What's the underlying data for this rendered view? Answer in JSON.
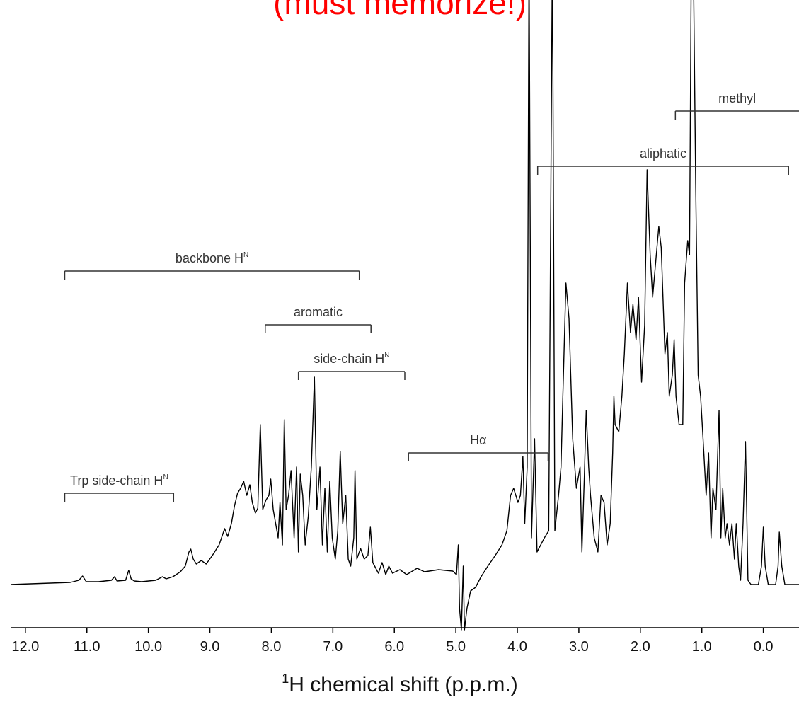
{
  "chart_data": {
    "type": "line",
    "title": "(must memorize!)",
    "xlabel": {
      "sup": "1",
      "text": "H chemical shift (p.p.m.)"
    },
    "color": "#000000",
    "xlim": [
      12.24,
      -0.58
    ],
    "ylim": [
      -63,
      824
    ],
    "xticks": [
      {
        "value": 12,
        "label": "12.0"
      },
      {
        "value": 11,
        "label": "11.0"
      },
      {
        "value": 10,
        "label": "10.0"
      },
      {
        "value": 9,
        "label": "9.0"
      },
      {
        "value": 8,
        "label": "8.0"
      },
      {
        "value": 7,
        "label": "7.0"
      },
      {
        "value": 6,
        "label": "6.0"
      },
      {
        "value": 5,
        "label": "5.0"
      },
      {
        "value": 4,
        "label": "4.0"
      },
      {
        "value": 3,
        "label": "3.0"
      },
      {
        "value": 2,
        "label": "2.0"
      },
      {
        "value": 1,
        "label": "1.0"
      },
      {
        "value": 0,
        "label": "0.0"
      }
    ],
    "annotations": [
      {
        "text": "Trp side-chain H",
        "sup": "N",
        "range": [
          11.36,
          9.59
        ]
      },
      {
        "text": "backbone H",
        "sup": "N",
        "range": [
          11.36,
          6.57
        ]
      },
      {
        "text": "aromatic",
        "range": [
          8.1,
          6.38
        ]
      },
      {
        "text": "side-chain H",
        "sup": "N",
        "range": [
          7.56,
          5.83
        ]
      },
      {
        "text": "Hα",
        "range": [
          5.77,
          3.5
        ]
      },
      {
        "text": "aliphatic",
        "range": [
          3.67,
          -0.41
        ]
      },
      {
        "text": "methyl",
        "range": [
          1.43,
          -0.58
        ]
      }
    ],
    "x": [
      12.24,
      11.27,
      11.13,
      11.07,
      11.01,
      10.81,
      10.6,
      10.55,
      10.51,
      10.37,
      10.32,
      10.28,
      10.23,
      10.11,
      9.88,
      9.77,
      9.71,
      9.6,
      9.48,
      9.4,
      9.34,
      9.31,
      9.27,
      9.22,
      9.14,
      9.06,
      8.96,
      8.85,
      8.76,
      8.71,
      8.65,
      8.6,
      8.55,
      8.5,
      8.45,
      8.4,
      8.35,
      8.31,
      8.26,
      8.22,
      8.18,
      8.14,
      8.09,
      8.04,
      8.01,
      7.97,
      7.93,
      7.89,
      7.86,
      7.82,
      7.79,
      7.76,
      7.72,
      7.68,
      7.63,
      7.59,
      7.56,
      7.53,
      7.49,
      7.45,
      7.4,
      7.35,
      7.3,
      7.26,
      7.21,
      7.17,
      7.13,
      7.09,
      7.05,
      7.01,
      6.96,
      6.92,
      6.88,
      6.84,
      6.79,
      6.75,
      6.71,
      6.66,
      6.64,
      6.61,
      6.55,
      6.49,
      6.43,
      6.39,
      6.35,
      6.26,
      6.2,
      6.14,
      6.09,
      6.03,
      5.91,
      5.8,
      5.63,
      5.51,
      5.28,
      5.17,
      5.05,
      4.99,
      4.96,
      4.94,
      4.91,
      4.88,
      4.86,
      4.82,
      4.76,
      4.68,
      4.59,
      4.48,
      4.36,
      4.25,
      4.17,
      4.11,
      4.06,
      3.99,
      3.95,
      3.91,
      3.88,
      3.84,
      3.81,
      3.77,
      3.72,
      3.68,
      3.62,
      3.56,
      3.49,
      3.43,
      3.39,
      3.33,
      3.29,
      3.26,
      3.21,
      3.16,
      3.1,
      3.04,
      2.98,
      2.95,
      2.91,
      2.88,
      2.84,
      2.81,
      2.75,
      2.69,
      2.64,
      2.59,
      2.54,
      2.49,
      2.45,
      2.43,
      2.41,
      2.35,
      2.3,
      2.26,
      2.21,
      2.16,
      2.12,
      2.07,
      2.03,
      1.98,
      1.93,
      1.89,
      1.84,
      1.8,
      1.75,
      1.7,
      1.66,
      1.6,
      1.56,
      1.53,
      1.48,
      1.45,
      1.42,
      1.37,
      1.31,
      1.28,
      1.23,
      1.2,
      1.17,
      1.14,
      1.1,
      1.06,
      1.02,
      0.98,
      0.93,
      0.89,
      0.85,
      0.82,
      0.77,
      0.72,
      0.69,
      0.66,
      0.62,
      0.59,
      0.55,
      0.51,
      0.47,
      0.44,
      0.4,
      0.37,
      0.33,
      0.29,
      0.25,
      0.2,
      0.08,
      0.03,
      0,
      -0.03,
      -0.08,
      -0.2,
      -0.24,
      -0.26,
      -0.3,
      -0.35,
      -0.58
    ],
    "values": [
      -2,
      1,
      4,
      10,
      2,
      2,
      4,
      9,
      3,
      4,
      18,
      6,
      3,
      2,
      4,
      9,
      6,
      9,
      16,
      24,
      44,
      48,
      34,
      27,
      32,
      27,
      39,
      54,
      77,
      66,
      84,
      109,
      127,
      134,
      144,
      124,
      139,
      114,
      99,
      106,
      224,
      104,
      117,
      124,
      147,
      104,
      84,
      64,
      114,
      54,
      231,
      104,
      124,
      159,
      64,
      164,
      44,
      154,
      124,
      54,
      94,
      164,
      291,
      104,
      164,
      54,
      134,
      44,
      144,
      64,
      34,
      74,
      186,
      84,
      124,
      34,
      24,
      64,
      159,
      34,
      49,
      34,
      39,
      79,
      29,
      14,
      29,
      12,
      24,
      14,
      19,
      12,
      21,
      16,
      19,
      18,
      17,
      12,
      54,
      -36,
      -66,
      24,
      -66,
      -36,
      -11,
      -6,
      9,
      24,
      39,
      54,
      74,
      124,
      134,
      114,
      124,
      179,
      84,
      164,
      900,
      64,
      204,
      44,
      54,
      64,
      74,
      900,
      74,
      124,
      164,
      264,
      424,
      374,
      204,
      134,
      164,
      44,
      152,
      244,
      164,
      124,
      64,
      44,
      124,
      114,
      54,
      84,
      184,
      264,
      224,
      214,
      264,
      324,
      424,
      354,
      394,
      344,
      404,
      284,
      364,
      584,
      464,
      404,
      454,
      504,
      474,
      324,
      354,
      264,
      294,
      344,
      264,
      224,
      224,
      424,
      484,
      464,
      900,
      900,
      564,
      294,
      264,
      204,
      124,
      184,
      64,
      134,
      104,
      244,
      64,
      134,
      64,
      84,
      54,
      84,
      34,
      84,
      24,
      4,
      84,
      200,
      4,
      -2,
      -2,
      24,
      79,
      24,
      -2,
      -2,
      24,
      72,
      24,
      -2,
      -2
    ]
  }
}
